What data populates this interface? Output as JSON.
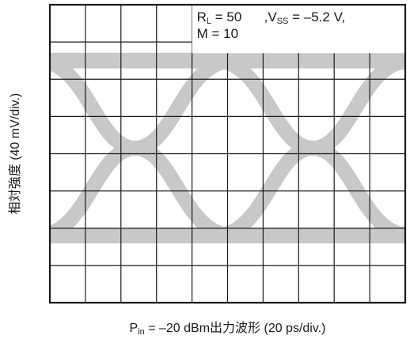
{
  "chart_data": {
    "type": "eye-diagram",
    "grid": {
      "x_divisions": 10,
      "y_divisions": 8,
      "shown": true
    },
    "x_axis": {
      "per_division": "20 ps/div."
    },
    "y_axis": {
      "per_division": "40 mV/div."
    },
    "xlabel": {
      "prefix": "P",
      "prefix_sub": "in",
      "text": " = –20 dBm出力波形 (20 ps/div.)"
    },
    "ylabel": "相対強度 (40 mV/div.)",
    "annotation": {
      "line1_parts": [
        {
          "t": "R",
          "sub": false
        },
        {
          "t": "L",
          "sub": true
        },
        {
          "t": " = 50",
          "sub": false
        },
        {
          "t": "      ,V",
          "sub": false
        },
        {
          "t": "SS",
          "sub": true
        },
        {
          "t": " = –5.2 V,",
          "sub": false
        }
      ],
      "line2": "M = 10"
    },
    "levels_div": {
      "high": 6.5,
      "low": 1.8
    },
    "crossings_div": [
      2.4,
      7.4
    ],
    "colors": {
      "trace": "#c8c8c8",
      "grid": "#1a1a1a",
      "background": "#ffffff"
    }
  }
}
